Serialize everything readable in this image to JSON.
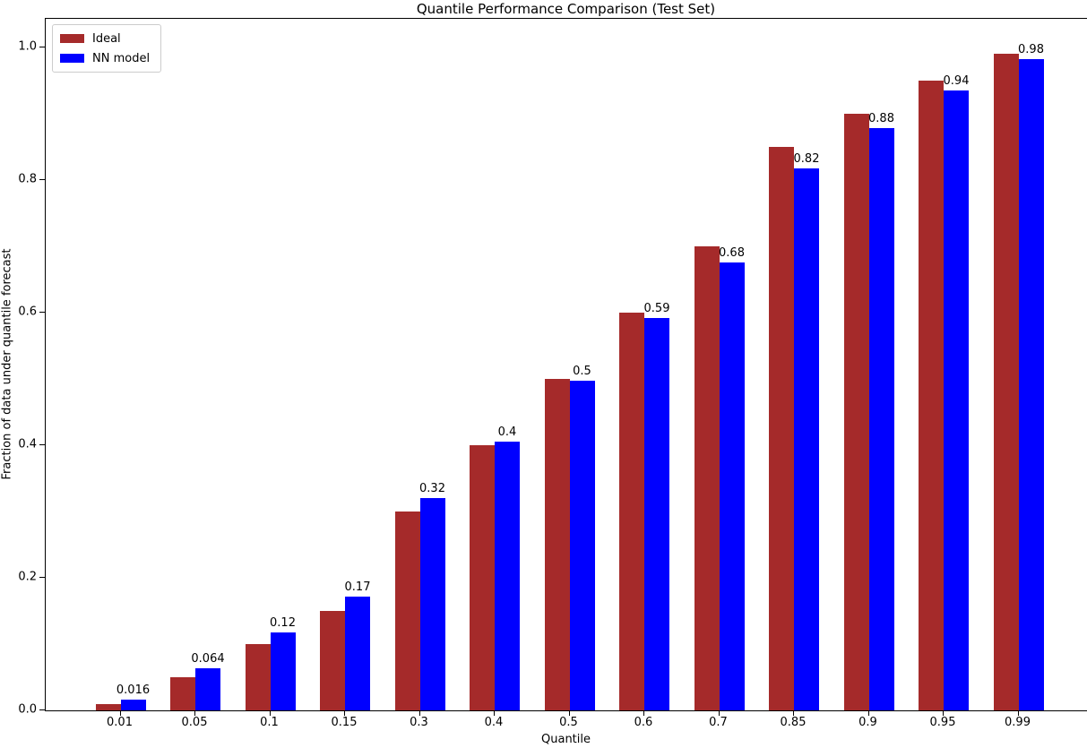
{
  "title": "Quantile Performance Comparison (Test Set)",
  "colors": {
    "ideal_bar": "#a52a2a",
    "nn_bar": "#0000ff",
    "axis": "#000000",
    "background": "#ffffff",
    "legend_border": "#cccccc"
  },
  "chart_data": {
    "type": "bar",
    "title": "Quantile Performance Comparison (Test Set)",
    "xlabel": "Quantile",
    "ylabel": "Fraction of data under quantile forecast",
    "categories": [
      "0.01",
      "0.05",
      "0.1",
      "0.15",
      "0.3",
      "0.4",
      "0.5",
      "0.6",
      "0.7",
      "0.85",
      "0.9",
      "0.95",
      "0.99"
    ],
    "series": [
      {
        "name": "Ideal",
        "color": "#a52a2a",
        "values": [
          0.01,
          0.05,
          0.1,
          0.15,
          0.3,
          0.4,
          0.5,
          0.6,
          0.7,
          0.85,
          0.9,
          0.95,
          0.99
        ]
      },
      {
        "name": "NN model",
        "color": "#0000ff",
        "values": [
          0.016,
          0.064,
          0.118,
          0.172,
          0.32,
          0.405,
          0.497,
          0.592,
          0.675,
          0.818,
          0.878,
          0.935,
          0.983
        ],
        "labels": [
          "0.016",
          "0.064",
          "0.12",
          "0.17",
          "0.32",
          "0.4",
          "0.5",
          "0.59",
          "0.68",
          "0.82",
          "0.88",
          "0.94",
          "0.98"
        ]
      }
    ],
    "yticks": [
      "0.0",
      "0.2",
      "0.4",
      "0.6",
      "0.8",
      "1.0"
    ],
    "ylim": [
      0,
      1.043
    ],
    "legend_position": "upper left",
    "legend_entries": [
      "Ideal",
      "NN model"
    ],
    "grid": false,
    "bar_labels_on_series": "NN model"
  }
}
